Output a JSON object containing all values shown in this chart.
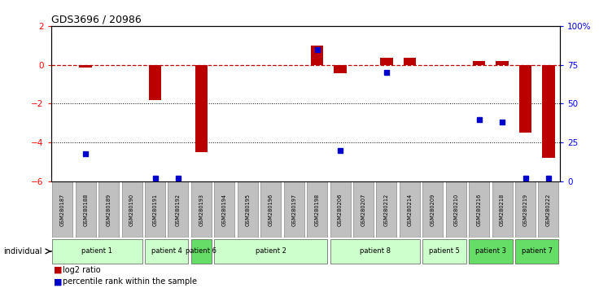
{
  "title": "GDS3696 / 20986",
  "samples": [
    "GSM280187",
    "GSM280188",
    "GSM280189",
    "GSM280190",
    "GSM280191",
    "GSM280192",
    "GSM280193",
    "GSM280194",
    "GSM280195",
    "GSM280196",
    "GSM280197",
    "GSM280198",
    "GSM280206",
    "GSM280207",
    "GSM280212",
    "GSM280214",
    "GSM280209",
    "GSM280210",
    "GSM280216",
    "GSM280218",
    "GSM280219",
    "GSM280222"
  ],
  "log2_ratio": [
    0.0,
    -0.15,
    0.0,
    0.0,
    -1.8,
    0.0,
    -4.5,
    0.0,
    0.0,
    0.0,
    0.0,
    1.0,
    -0.45,
    0.0,
    0.35,
    0.35,
    0.0,
    0.0,
    0.2,
    0.2,
    -3.5,
    -4.8
  ],
  "percentile_rank": [
    null,
    18,
    null,
    null,
    2,
    2,
    null,
    null,
    null,
    null,
    null,
    85,
    20,
    null,
    70,
    null,
    null,
    null,
    40,
    38,
    2,
    2
  ],
  "patients": [
    {
      "label": "patient 1",
      "start": 0,
      "end": 4,
      "color": "#ccffcc"
    },
    {
      "label": "patient 4",
      "start": 4,
      "end": 6,
      "color": "#ccffcc"
    },
    {
      "label": "patient 6",
      "start": 6,
      "end": 7,
      "color": "#66dd66"
    },
    {
      "label": "patient 2",
      "start": 7,
      "end": 12,
      "color": "#ccffcc"
    },
    {
      "label": "patient 8",
      "start": 12,
      "end": 16,
      "color": "#ccffcc"
    },
    {
      "label": "patient 5",
      "start": 16,
      "end": 18,
      "color": "#ccffcc"
    },
    {
      "label": "patient 3",
      "start": 18,
      "end": 20,
      "color": "#66dd66"
    },
    {
      "label": "patient 7",
      "start": 20,
      "end": 22,
      "color": "#66dd66"
    }
  ],
  "ylim_left": [
    -6,
    2
  ],
  "ylim_right": [
    0,
    100
  ],
  "right_ticks": [
    0,
    25,
    50,
    75,
    100
  ],
  "right_tick_labels": [
    "0",
    "25",
    "50",
    "75",
    "100%"
  ],
  "left_ticks": [
    -6,
    -4,
    -2,
    0,
    2
  ],
  "dotted_lines": [
    -2,
    -4
  ],
  "bar_color": "#bb0000",
  "dot_color": "#0000cc",
  "sample_box_color": "#c0c0c0",
  "legend_log2_color": "#bb0000",
  "legend_pct_color": "#0000cc"
}
